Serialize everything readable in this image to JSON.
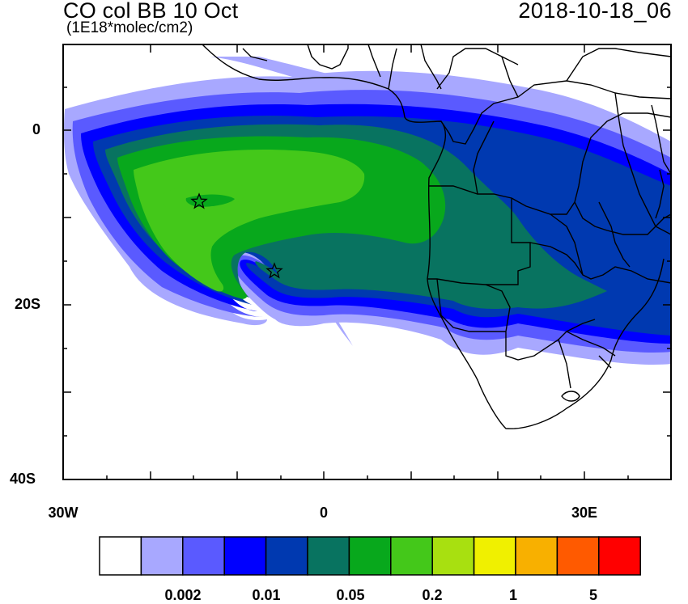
{
  "header": {
    "title": "CO col BB 10 Oct",
    "units": "(1E18*molec/cm2)",
    "timestamp": "2018-10-18_06"
  },
  "map": {
    "lon_range": [
      -30,
      40
    ],
    "lat_range": [
      -40,
      10
    ],
    "y_tick_labels": [
      "0",
      "20S",
      "40S"
    ],
    "x_tick_labels": [
      "30W",
      "0",
      "30E"
    ],
    "markers": [
      {
        "name": "star",
        "lon": -14,
        "lat": -8
      },
      {
        "name": "star",
        "lon": -5.5,
        "lat": -16
      }
    ]
  },
  "colorbar": {
    "colors": [
      "#ffffff",
      "#a8a8ff",
      "#5a5aff",
      "#0000ff",
      "#0039b0",
      "#087360",
      "#08a81c",
      "#44c81a",
      "#a8e010",
      "#f0f000",
      "#f8b000",
      "#ff5a00",
      "#ff0000"
    ],
    "labels": [
      "0.002",
      "0.01",
      "0.05",
      "0.2",
      "1",
      "5"
    ]
  }
}
